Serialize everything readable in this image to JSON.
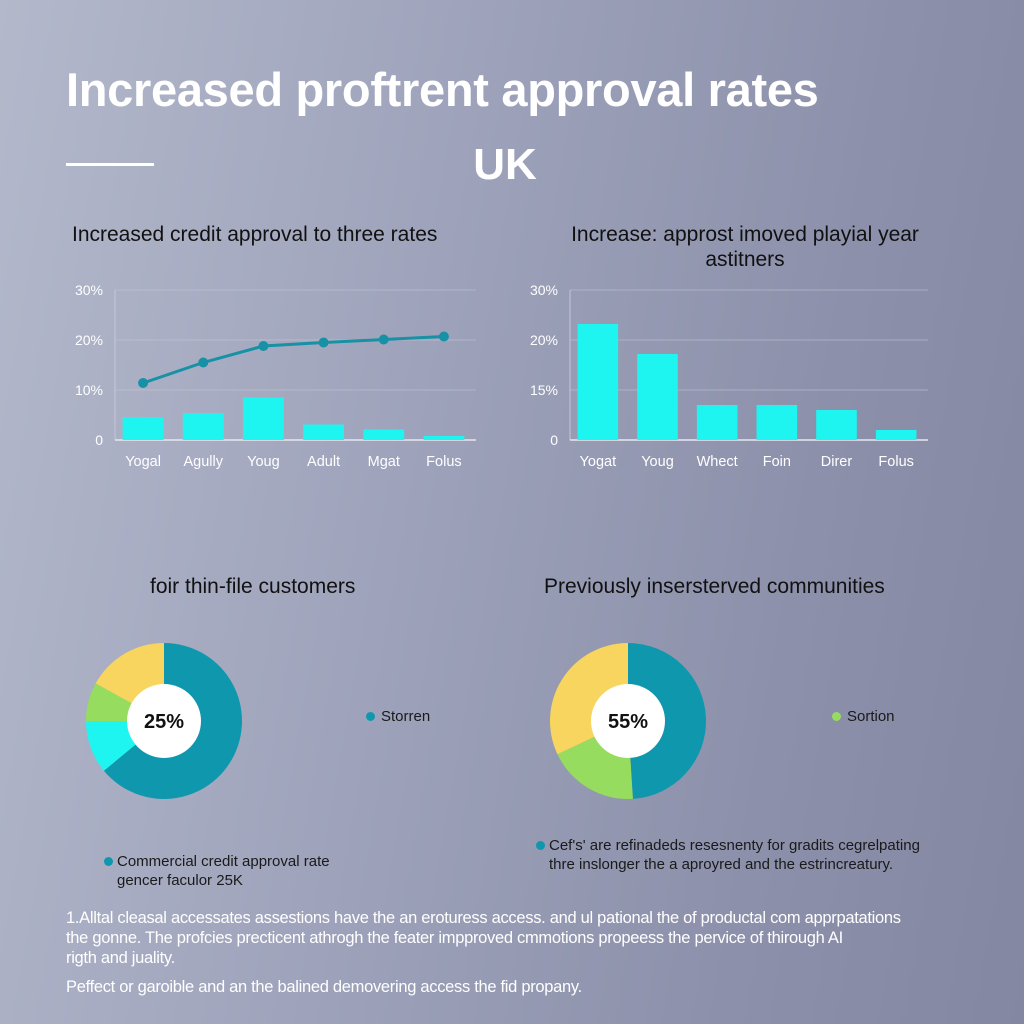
{
  "header": {
    "title": "Increased proftrent approval rates",
    "subtitle": "UK"
  },
  "colors": {
    "bar": "#1ef5f0",
    "line": "#1791a5",
    "teal": "#0e97ad",
    "cyan": "#1ef5f0",
    "green": "#96dc5e",
    "yellow": "#f7d55e",
    "grid": "#c4c7d6"
  },
  "chart_data": [
    {
      "type": "bar",
      "title": "Increased credit approval to three rates",
      "categories": [
        "Yogal",
        "Agully",
        "Youg",
        "Adult",
        "Mgat",
        "Folus"
      ],
      "y_tick_labels": [
        "0",
        "10%",
        "20%",
        "30%"
      ],
      "ylim": [
        0,
        30
      ],
      "grid": true,
      "series": [
        {
          "type": "bar",
          "values": [
            4.6,
            5.4,
            8.5,
            3.1,
            2.1,
            0.8
          ]
        },
        {
          "type": "line",
          "values": [
            11.4,
            15.5,
            18.8,
            19.5,
            20.1,
            20.7
          ]
        }
      ]
    },
    {
      "type": "bar",
      "title": "Increase: approst imoved playial year astitners",
      "categories": [
        "Yogat",
        "Youg",
        "Whect",
        "Foin",
        "Direr",
        "Folus"
      ],
      "y_tick_labels": [
        "0",
        "15%",
        "20%",
        "30%"
      ],
      "ylim": [
        0,
        30
      ],
      "grid": true,
      "values": [
        23.2,
        17.2,
        7.0,
        7.0,
        6.0,
        2.0
      ]
    },
    {
      "type": "pie",
      "title": "foir thin-file customers",
      "center_label": "25%",
      "slices": [
        {
          "color": "#0e97ad",
          "value": 64
        },
        {
          "color": "#1ef5f0",
          "value": 11
        },
        {
          "color": "#96dc5e",
          "value": 8
        },
        {
          "color": "#f7d55e",
          "value": 17
        }
      ],
      "legend": [
        {
          "label": "Storren",
          "color": "#0e97ad"
        }
      ],
      "note": [
        "Commercial credit approval rate",
        "gencer faculor 25K"
      ]
    },
    {
      "type": "pie",
      "title": "Previously insersterved communities",
      "center_label": "55%",
      "slices": [
        {
          "color": "#0e97ad",
          "value": 49
        },
        {
          "color": "#96dc5e",
          "value": 19
        },
        {
          "color": "#f7d55e",
          "value": 32
        }
      ],
      "legend": [
        {
          "label": "Sortion",
          "color": "#96dc5e"
        }
      ],
      "note": [
        "Cef's' are refinadeds resesnenty for gradits cegrelpating",
        "thre inslonger the a aproyred and the estrincreatury."
      ]
    }
  ],
  "footer": {
    "paragraph1": [
      "1.Alltal cleasal accessates assestions have the an eroturess access. and ul pational the of productal com apprpatations",
      "the gonne. The profcies precticent athrogh the feater impproved cmmotions propeess the pervice of thirough AI",
      "rigth and juality."
    ],
    "paragraph2": "Peffect or garoible and an the balined demovering access the fid propany."
  }
}
